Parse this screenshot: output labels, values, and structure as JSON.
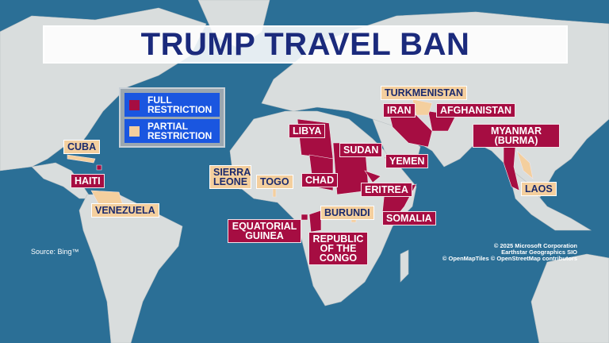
{
  "title": "TRUMP TRAVEL BAN",
  "colors": {
    "ocean": "#2b6f96",
    "land": "#d9dddd",
    "full_restriction": "#a60d42",
    "partial_restriction": "#f4cf9e",
    "legend_bg": "#1a56e0",
    "title_text": "#1b2a7c"
  },
  "legend": {
    "full": "FULL RESTRICTION",
    "partial": "PARTIAL RESTRICTION"
  },
  "countries": {
    "full": [
      "HAITI",
      "LIBYA",
      "SUDAN",
      "CHAD",
      "YEMEN",
      "ERITREA",
      "SOMALIA",
      "EQUATORIAL GUINEA",
      "REPUBLIC OF THE CONGO",
      "IRAN",
      "AFGHANISTAN",
      "MYANMAR (BURMA)"
    ],
    "partial": [
      "CUBA",
      "VENEZUELA",
      "SIERRA LEONE",
      "TOGO",
      "BURUNDI",
      "TURKMENISTAN",
      "LAOS"
    ]
  },
  "source": "Source: Bing™",
  "attribution": [
    "© 2025 Microsoft Corporation",
    "Earthstar Geographics  SIO",
    "© OpenMapTiles © OpenStreetMap contributors"
  ]
}
